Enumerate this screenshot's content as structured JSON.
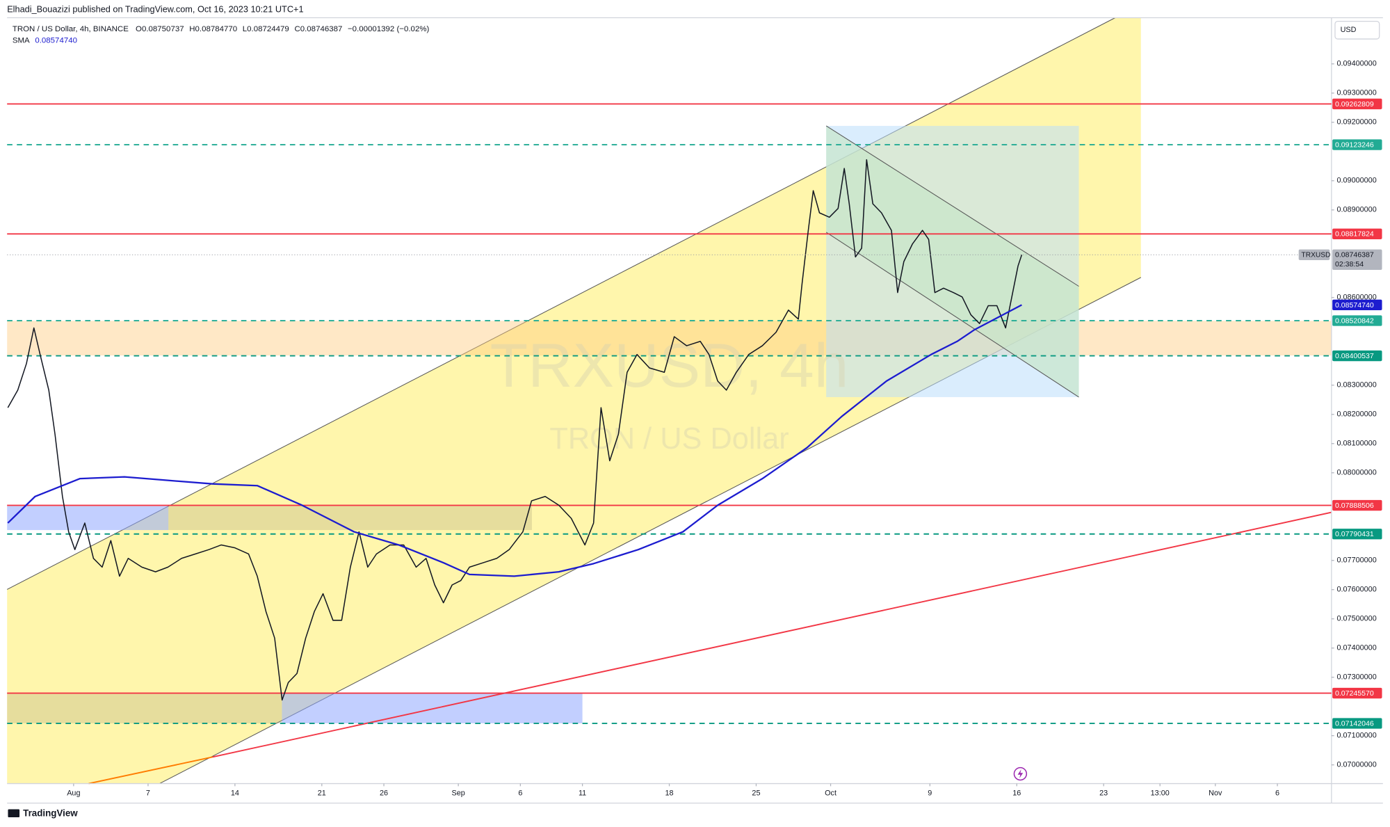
{
  "header": {
    "publisher": "Elhadi_Bouazizi published on TradingView.com, Oct 16, 2023 10:21 UTC+1",
    "currency": "USD",
    "footer": "TradingView"
  },
  "chart_data": {
    "type": "line",
    "title": "TRON / US Dollar, 4h, BINANCE",
    "watermark": "TRXUSD, 4h",
    "watermark_subtitle": "TRON / US Dollar",
    "ohlc": [
      {
        "label": "O",
        "value": "0.08750737"
      },
      {
        "label": "H",
        "value": "0.08784770"
      },
      {
        "label": "L",
        "value": "0.08724479"
      },
      {
        "label": "C",
        "value": "0.08746387"
      }
    ],
    "change": "−0.00001392 (−0.02%)",
    "countdown": "02:38:54",
    "xlim": [
      -5.36,
      101.36
    ],
    "ylim": [
      0.06936,
      0.09558
    ],
    "grid": false,
    "xticks": [
      {
        "value": 0,
        "label": "Aug"
      },
      {
        "value": 6,
        "label": "7"
      },
      {
        "value": 13,
        "label": "14"
      },
      {
        "value": 20,
        "label": "21"
      },
      {
        "value": 25,
        "label": "26"
      },
      {
        "value": 31,
        "label": "Sep"
      },
      {
        "value": 36,
        "label": "6"
      },
      {
        "value": 41,
        "label": "11"
      },
      {
        "value": 48,
        "label": "18"
      },
      {
        "value": 55,
        "label": "25"
      },
      {
        "value": 61,
        "label": "Oct"
      },
      {
        "value": 69,
        "label": "9"
      },
      {
        "value": 76,
        "label": "16"
      },
      {
        "value": 83,
        "label": "23"
      },
      {
        "value": 87.54,
        "label": "13:00"
      },
      {
        "value": 92,
        "label": "Nov"
      },
      {
        "value": 97,
        "label": "6"
      }
    ],
    "yticks": [
      {
        "value": 0.094,
        "label": "0.09400000"
      },
      {
        "value": 0.093,
        "label": "0.09300000"
      },
      {
        "value": 0.092,
        "label": "0.09200000"
      },
      {
        "value": 0.09,
        "label": "0.09000000"
      },
      {
        "value": 0.089,
        "label": "0.08900000"
      },
      {
        "value": 0.086,
        "label": "0.08600000"
      },
      {
        "value": 0.083,
        "label": "0.08300000"
      },
      {
        "value": 0.082,
        "label": "0.08200000"
      },
      {
        "value": 0.081,
        "label": "0.08100000"
      },
      {
        "value": 0.08,
        "label": "0.08000000"
      },
      {
        "value": 0.077,
        "label": "0.07700000"
      },
      {
        "value": 0.076,
        "label": "0.07600000"
      },
      {
        "value": 0.075,
        "label": "0.07500000"
      },
      {
        "value": 0.074,
        "label": "0.07400000"
      },
      {
        "value": 0.073,
        "label": "0.07300000"
      },
      {
        "value": 0.071,
        "label": "0.07100000"
      },
      {
        "value": 0.07,
        "label": "0.07000000"
      }
    ],
    "series": [
      {
        "name": "TRXUSD",
        "color": "#131722",
        "x": [
          -5.3,
          -4.5,
          -3.8,
          -3.2,
          -2.7,
          -2.0,
          -1.5,
          -0.9,
          -0.4,
          0.1,
          0.9,
          1.6,
          2.3,
          3.0,
          3.7,
          4.4,
          5.5,
          6.6,
          7.6,
          8.7,
          9.8,
          10.9,
          11.9,
          13.0,
          14.1,
          14.8,
          15.5,
          16.2,
          16.8,
          17.3,
          18.0,
          18.7,
          19.4,
          20.1,
          20.9,
          21.6,
          22.3,
          23.0,
          23.7,
          24.4,
          25.5,
          26.6,
          27.6,
          28.4,
          29.1,
          29.8,
          30.5,
          31.2,
          31.9,
          33.0,
          34.1,
          35.1,
          36.2,
          36.9,
          38.0,
          39.1,
          40.1,
          41.2,
          41.9,
          42.5,
          43.2,
          43.9,
          44.6,
          45.4,
          46.4,
          47.6,
          48.4,
          49.4,
          50.5,
          51.2,
          51.9,
          52.6,
          53.4,
          54.4,
          55.5,
          56.6,
          57.6,
          58.4,
          58.7,
          59.2,
          59.6,
          60.1,
          60.9,
          61.6,
          62.1,
          62.5,
          63.0,
          63.5,
          63.9,
          64.4,
          65.1,
          65.9,
          66.4,
          66.9,
          67.6,
          68.4,
          68.9,
          69.4,
          70.1,
          70.9,
          71.6,
          72.3,
          73.0,
          73.7,
          74.4,
          75.1,
          75.6,
          76.1,
          76.4
        ],
        "values": [
          0.08223,
          0.08283,
          0.08374,
          0.08496,
          0.08405,
          0.08283,
          0.08132,
          0.07919,
          0.07798,
          0.07737,
          0.07828,
          0.07707,
          0.07677,
          0.07768,
          0.07646,
          0.07707,
          0.07677,
          0.07661,
          0.07677,
          0.07707,
          0.07722,
          0.07737,
          0.07753,
          0.07743,
          0.07722,
          0.07646,
          0.07525,
          0.07434,
          0.07222,
          0.07282,
          0.07313,
          0.07434,
          0.07525,
          0.07586,
          0.07495,
          0.07495,
          0.07677,
          0.07798,
          0.07677,
          0.07722,
          0.07753,
          0.07753,
          0.07677,
          0.07707,
          0.07616,
          0.07555,
          0.07616,
          0.07631,
          0.07677,
          0.07692,
          0.07707,
          0.07737,
          0.07798,
          0.07904,
          0.07919,
          0.07889,
          0.07844,
          0.07753,
          0.07828,
          0.08223,
          0.08041,
          0.08132,
          0.08344,
          0.08405,
          0.08359,
          0.08344,
          0.08466,
          0.08435,
          0.0845,
          0.08405,
          0.08314,
          0.08283,
          0.08344,
          0.08405,
          0.08435,
          0.08481,
          0.08557,
          0.08526,
          0.08648,
          0.0883,
          0.08966,
          0.0889,
          0.08875,
          0.08905,
          0.09042,
          0.08921,
          0.08739,
          0.08769,
          0.09072,
          0.08921,
          0.0889,
          0.0883,
          0.08617,
          0.08723,
          0.08784,
          0.0883,
          0.08799,
          0.08617,
          0.08632,
          0.08617,
          0.08602,
          0.08541,
          0.08511,
          0.08572,
          0.08572,
          0.08496,
          0.08602,
          0.08708,
          0.08746387
        ]
      },
      {
        "name": "SMA",
        "color": "#1c1ccf",
        "tag": "0.08574740",
        "x": [
          -5.3,
          -3.1,
          0.5,
          4.1,
          7.6,
          11.2,
          14.8,
          18.4,
          22.6,
          26.2,
          29.8,
          31.9,
          35.5,
          39.1,
          41.9,
          45.5,
          49.1,
          51.9,
          55.5,
          59.1,
          61.9,
          65.5,
          69.1,
          71.2,
          72.6,
          76.4
        ],
        "values": [
          0.07828,
          0.07919,
          0.0798,
          0.07986,
          0.07974,
          0.07962,
          0.07956,
          0.07889,
          0.07798,
          0.07753,
          0.07692,
          0.07652,
          0.07646,
          0.07661,
          0.07689,
          0.07737,
          0.07798,
          0.07889,
          0.0798,
          0.08086,
          0.08193,
          0.08314,
          0.08405,
          0.0845,
          0.0849,
          0.0857474
        ]
      }
    ],
    "levels": [
      {
        "value": 0.09262809,
        "label": "0.09262809",
        "color": "#f23645",
        "style": "solid"
      },
      {
        "value": 0.09123246,
        "label": "0.09123246",
        "color": "#22ab94",
        "style": "dashed"
      },
      {
        "value": 0.08817824,
        "label": "0.08817824",
        "color": "#f23645",
        "style": "solid"
      },
      {
        "value": 0.08520842,
        "label": "0.08520842",
        "color": "#22ab94",
        "style": "dashed"
      },
      {
        "value": 0.08400537,
        "label": "0.08400537",
        "color": "#089981",
        "style": "dashed"
      },
      {
        "value": 0.07888506,
        "label": "0.07888506",
        "color": "#f23645",
        "style": "solid"
      },
      {
        "value": 0.07790431,
        "label": "0.07790431",
        "color": "#089981",
        "style": "dashed"
      },
      {
        "value": 0.0724557,
        "label": "0.07245570",
        "color": "#f23645",
        "style": "solid"
      },
      {
        "value": 0.07142046,
        "label": "0.07142046",
        "color": "#089981",
        "style": "dashed"
      }
    ]
  }
}
